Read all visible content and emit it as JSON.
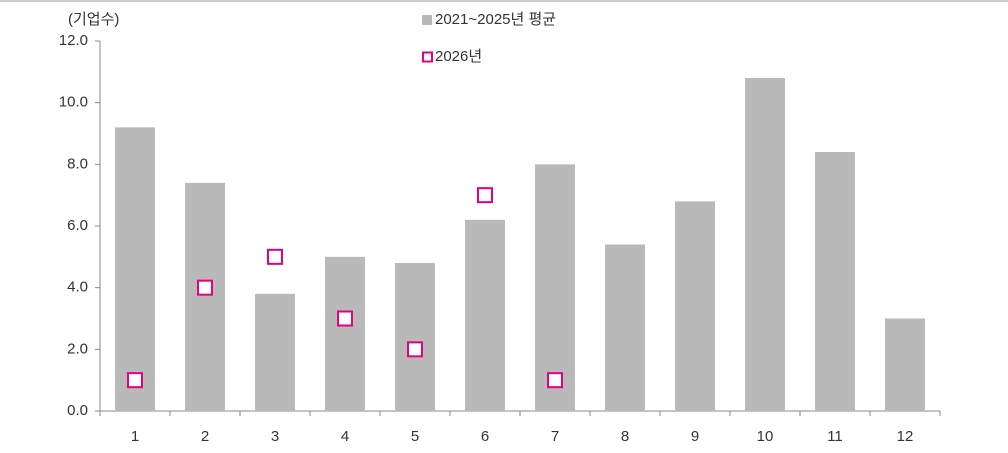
{
  "chart_data": {
    "type": "bar",
    "y_axis_label": "(기업수)",
    "categories": [
      "1",
      "2",
      "3",
      "4",
      "5",
      "6",
      "7",
      "8",
      "9",
      "10",
      "11",
      "12"
    ],
    "series": [
      {
        "name": "2021~2025년 평균",
        "type": "bar",
        "color": "#b9b9b9",
        "values": [
          9.2,
          7.4,
          3.8,
          5.0,
          4.8,
          6.2,
          8.0,
          5.4,
          6.8,
          10.8,
          8.4,
          3.0
        ]
      },
      {
        "name": "2026년",
        "type": "scatter",
        "color": "#e4007f",
        "values": [
          1,
          4,
          5,
          3,
          2,
          7,
          1,
          null,
          null,
          null,
          null,
          null
        ]
      }
    ],
    "ylim": [
      0,
      12
    ],
    "yticks": [
      {
        "value": 0,
        "label": "0.0"
      },
      {
        "value": 2,
        "label": "2.0"
      },
      {
        "value": 4,
        "label": "4.0"
      },
      {
        "value": 6,
        "label": "6.0"
      },
      {
        "value": 8,
        "label": "8.0"
      },
      {
        "value": 10,
        "label": "10.0"
      },
      {
        "value": 12,
        "label": "12.0"
      }
    ],
    "grid": false
  }
}
